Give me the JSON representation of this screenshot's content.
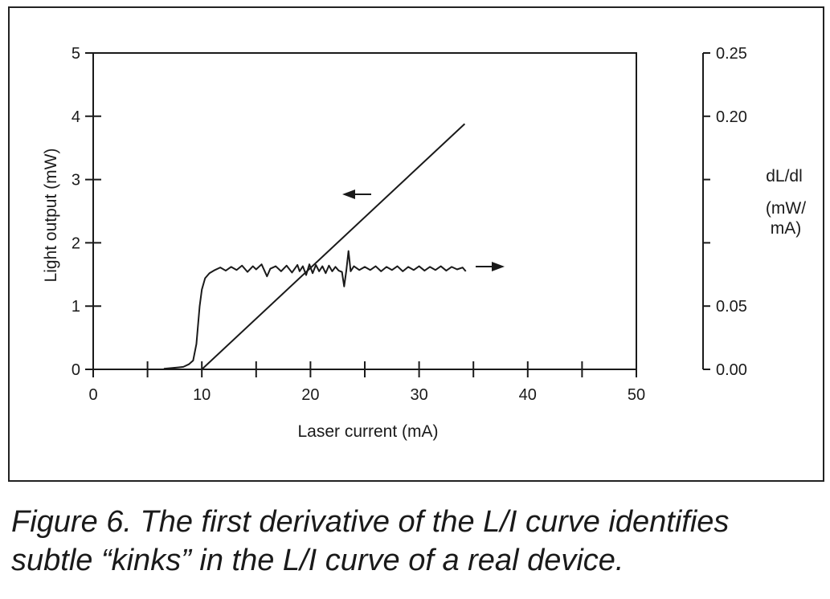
{
  "chart_data": {
    "type": "line",
    "xlabel": "Laser current (mA)",
    "ylabel": "Light output (mW)",
    "y2label_line1": "dL/dl",
    "y2label_line2": "(mW/",
    "y2label_line3": "mA)",
    "xlim": [
      0,
      50
    ],
    "ylim": [
      0,
      5
    ],
    "y2lim": [
      0,
      0.25
    ],
    "x_ticks": [
      0,
      10,
      20,
      30,
      40,
      50
    ],
    "x_minor_ticks": [
      5,
      15,
      25,
      35,
      45
    ],
    "y_ticks": [
      0,
      1,
      2,
      3,
      4,
      5
    ],
    "y2_ticks": [
      {
        "value": 0.0,
        "label": "0.00"
      },
      {
        "value": 0.05,
        "label": "0.05"
      },
      {
        "value": 0.1,
        "label": ""
      },
      {
        "value": 0.15,
        "label": ""
      },
      {
        "value": 0.2,
        "label": "0.20"
      },
      {
        "value": 0.25,
        "label": "0.25"
      }
    ],
    "grid": false,
    "series": [
      {
        "axis": "left",
        "x": [
          10,
          34.2
        ],
        "y": [
          0,
          3.88
        ]
      },
      {
        "axis": "right",
        "x": [
          6.5,
          7.2,
          7.8,
          8.3,
          8.8,
          9.2,
          9.5,
          9.65,
          9.8,
          10.0,
          10.3,
          10.7,
          11.2,
          11.7,
          12.2,
          12.7,
          13.2,
          13.7,
          14.2,
          14.7,
          15.0,
          15.5,
          16.0,
          16.3,
          16.8,
          17.3,
          17.8,
          18.3,
          18.8,
          19.0,
          19.3,
          19.6,
          19.9,
          20.2,
          20.5,
          20.8,
          21.1,
          21.4,
          21.7,
          22.0,
          22.3,
          22.6,
          22.9,
          23.1,
          23.3,
          23.5,
          23.7,
          24.0,
          24.5,
          25.0,
          25.5,
          26.0,
          26.5,
          27.0,
          27.5,
          28.0,
          28.5,
          29.0,
          29.5,
          30.0,
          30.5,
          31.0,
          31.5,
          32.0,
          32.5,
          33.0,
          33.5,
          34.0,
          34.3
        ],
        "y": [
          0.0005,
          0.001,
          0.0015,
          0.002,
          0.004,
          0.007,
          0.02,
          0.035,
          0.05,
          0.063,
          0.072,
          0.076,
          0.0785,
          0.0805,
          0.078,
          0.081,
          0.0785,
          0.082,
          0.077,
          0.0815,
          0.079,
          0.083,
          0.0735,
          0.0795,
          0.0815,
          0.0775,
          0.082,
          0.0765,
          0.0825,
          0.0775,
          0.0815,
          0.0745,
          0.083,
          0.076,
          0.0825,
          0.0775,
          0.0815,
          0.076,
          0.082,
          0.0775,
          0.081,
          0.078,
          0.077,
          0.0655,
          0.078,
          0.0935,
          0.0775,
          0.0815,
          0.0785,
          0.081,
          0.0785,
          0.0815,
          0.0775,
          0.081,
          0.0785,
          0.0815,
          0.0775,
          0.081,
          0.0785,
          0.0815,
          0.078,
          0.081,
          0.0785,
          0.0815,
          0.078,
          0.081,
          0.079,
          0.0805,
          0.0775
        ]
      }
    ],
    "annotations": [
      {
        "direction": "left",
        "points_to_axis": "left"
      },
      {
        "direction": "right",
        "points_to_axis": "right"
      }
    ]
  },
  "caption_line1": "Figure 6. The first derivative of the L/I curve identifies",
  "caption_line2": "subtle “kinks” in the L/I curve of a real device."
}
